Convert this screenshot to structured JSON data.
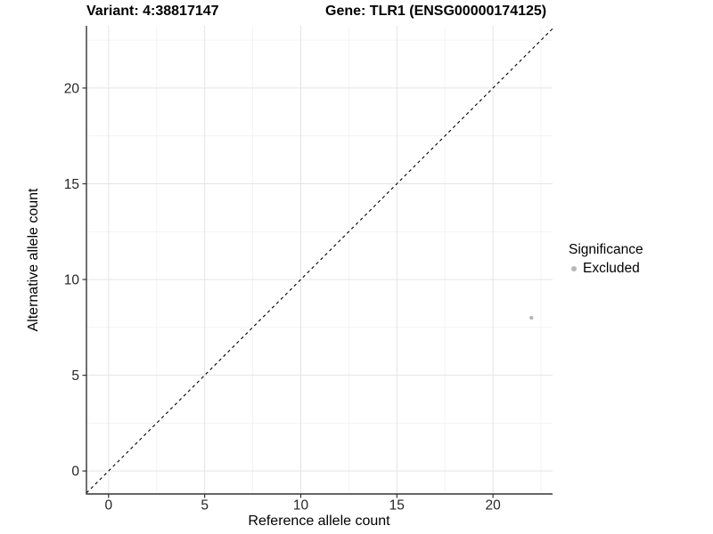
{
  "chart_data": {
    "type": "scatter",
    "title_left": "Variant: 4:38817147",
    "title_right": "Gene: TLR1 (ENSG00000174125)",
    "xlabel": "Reference allele count",
    "ylabel": "Alternative allele count",
    "x_ticks": [
      0,
      5,
      10,
      15,
      20
    ],
    "y_ticks": [
      0,
      5,
      10,
      15,
      20
    ],
    "xlim": [
      -1.15,
      23.1
    ],
    "ylim": [
      -1.2,
      23.25
    ],
    "grid": "major+minor",
    "minor_grid_step": 2.5,
    "identity_line": {
      "type": "dashed",
      "slope": 1,
      "intercept": 0,
      "color": "#000000"
    },
    "points": [
      {
        "x": 22,
        "y": 8,
        "significance": "Excluded",
        "color": "#b8b8b8"
      }
    ],
    "legend": {
      "title": "Significance",
      "position": "right",
      "items": [
        {
          "label": "Excluded",
          "color": "#b8b8b8"
        }
      ]
    },
    "style": {
      "major_grid_color": "#e4e4e4",
      "minor_grid_color": "#f1f1f1",
      "axis_color": "#333333",
      "tick_color": "#333333",
      "tick_label_color": "#262626",
      "point_radius_px": 2.2
    }
  }
}
